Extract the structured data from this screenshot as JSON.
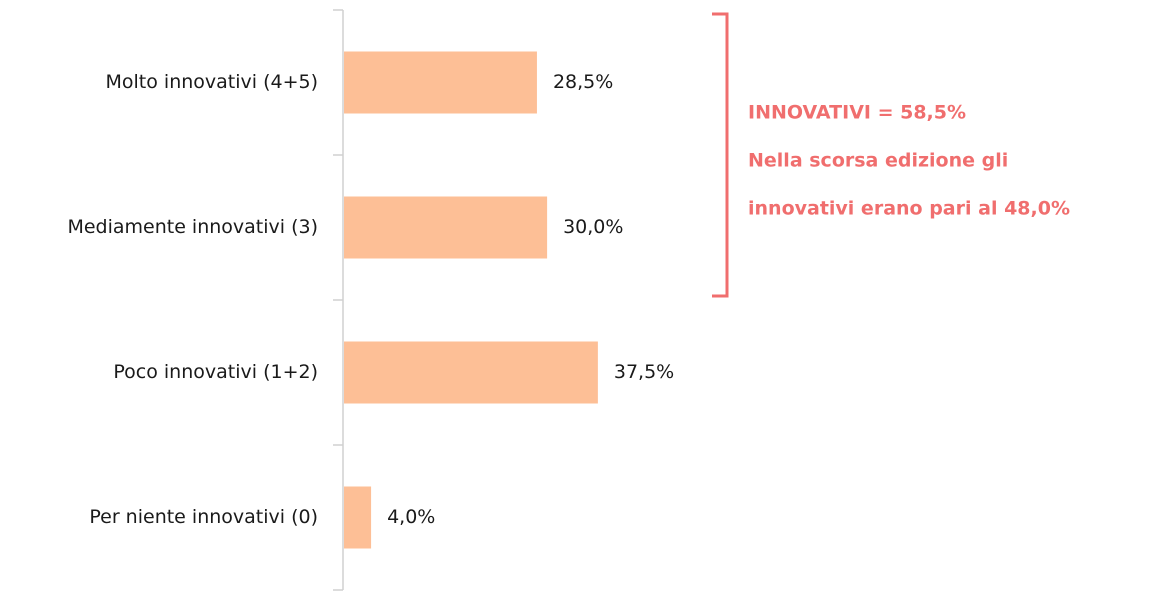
{
  "chart_data": {
    "type": "bar",
    "orientation": "horizontal",
    "categories": [
      "Molto innovativi (4+5)",
      "Mediamente innovativi (3)",
      "Poco innovativi (1+2)",
      "Per niente innovativi (0)"
    ],
    "values": [
      28.5,
      30.0,
      37.5,
      4.0
    ],
    "value_labels": [
      "28,5%",
      "30,0%",
      "37,5%",
      "4,0%"
    ],
    "color": "#fdbf96",
    "annotation": {
      "lines": [
        "INNOVATIVI = 58,5%",
        "Nella scorsa edizione gli",
        "innovativi erano pari al 48,0%"
      ],
      "color": "#f06e6e"
    }
  }
}
